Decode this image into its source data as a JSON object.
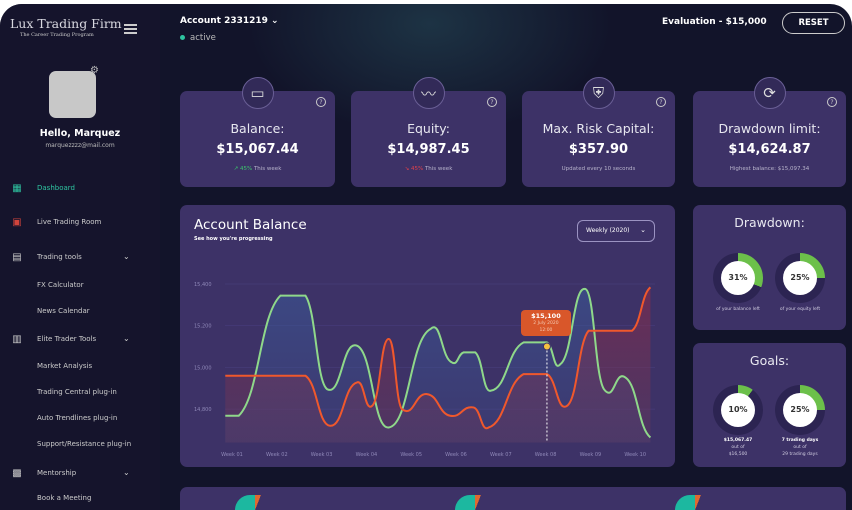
{
  "sidebar": {
    "logo_title": "Lux Trading Firm",
    "logo_subtitle": "The Career Trading Program",
    "greeting": "Hello, Marquez",
    "email": "marquezzzz@mail.com",
    "items": [
      {
        "label": "Dashboard",
        "icon": "dashboard-icon",
        "active": true
      },
      {
        "label": "Live Trading Room",
        "icon": "live-room-icon"
      },
      {
        "label": "Trading tools",
        "icon": "trading-tools-icon",
        "expandable": true
      },
      {
        "label": "Elite Trader Tools",
        "icon": "elite-tools-icon",
        "expandable": true
      },
      {
        "label": "Mentorship",
        "icon": "mentorship-icon",
        "expandable": true
      }
    ],
    "subitems": {
      "trading_tools": [
        "FX Calculator",
        "News Calendar"
      ],
      "elite": [
        "Market Analysis",
        "Trading Central plug-in",
        "Auto Trendlines plug-in",
        "Support/Resistance plug-in"
      ],
      "mentorship": [
        "Book a Meeting"
      ]
    }
  },
  "header": {
    "account": "Account 2331219",
    "status": "active",
    "evaluation": "Evaluation - $15,000",
    "reset_label": "RESET"
  },
  "stats": [
    {
      "title": "Balance:",
      "value": "$15,067.44",
      "pct": "45%",
      "note": "This week",
      "trend": "up",
      "icon": "wallet-icon"
    },
    {
      "title": "Equity:",
      "value": "$14,987.45",
      "pct": "45%",
      "note": "This week",
      "trend": "down",
      "icon": "pulse-icon"
    },
    {
      "title": "Max. Risk Capital:",
      "value": "$357.90",
      "note": "Updated every 10 seconds",
      "icon": "shield-icon"
    },
    {
      "title": "Drawdown limit:",
      "value": "$14,624.87",
      "note": "Highest balance: $15,097.34",
      "icon": "refresh-dollar-icon"
    }
  ],
  "colors": {
    "green": "#8fd88a",
    "orange": "#f0582c",
    "accent": "#2ec4a0",
    "ring": "#6cc04a"
  },
  "chart_data": {
    "type": "line",
    "title": "Account Balance",
    "subtitle": "See how you're progressing",
    "period": "Weekly (2020)",
    "categories": [
      "Week 01",
      "Week 02",
      "Week 03",
      "Week 04",
      "Week 05",
      "Week 06",
      "Week 07",
      "Week 08",
      "Week 09",
      "Week 10"
    ],
    "yticks": [
      "15,400",
      "15,200",
      "15,000",
      "14,800"
    ],
    "ytick_values": [
      15400,
      15200,
      15000,
      14800
    ],
    "ylim": [
      14640,
      15420
    ],
    "series": [
      {
        "name": "balance",
        "color": "#8fd88a",
        "x": [
          0.85,
          1.15,
          2.08,
          2.64,
          3.12,
          3.79,
          4.5,
          5.43,
          5.91,
          6.17,
          6.43,
          6.77,
          7.51,
          8.03,
          8.33,
          8.89,
          9.3,
          9.78,
          10.34
        ],
        "y": [
          14768,
          14768,
          15344,
          15344,
          14896,
          15104,
          14712,
          15184,
          15024,
          15072,
          15072,
          14888,
          15120,
          15120,
          15016,
          15376,
          14896,
          14952,
          14664
        ]
      },
      {
        "name": "equity",
        "color": "#f0582c",
        "x": [
          0.85,
          2.64,
          3.19,
          3.79,
          4.13,
          4.5,
          4.79,
          5.35,
          5.87,
          6.39,
          6.73,
          7.51,
          8.03,
          8.48,
          8.96,
          9.93,
          10.34
        ],
        "y": [
          14960,
          14960,
          14720,
          14928,
          14816,
          15136,
          14800,
          14872,
          14768,
          14808,
          14712,
          14968,
          14968,
          14816,
          15176,
          15176,
          15384
        ]
      }
    ],
    "tooltip": {
      "value": "$15,100",
      "date": "2 July 2020",
      "time": "12:00",
      "x": 8.03,
      "y": 15100
    }
  },
  "drawdown": {
    "title": "Drawdown:",
    "items": [
      {
        "pct": 31,
        "label": "31%",
        "caption": "of your balance left"
      },
      {
        "pct": 25,
        "label": "25%",
        "caption": "of your equity left"
      }
    ]
  },
  "goals": {
    "title": "Goals:",
    "items": [
      {
        "pct": 10,
        "label": "10%",
        "line1": "$15,067.47",
        "line2": "out of",
        "line3": "$16,500"
      },
      {
        "pct": 25,
        "label": "25%",
        "line1": "7 trading days",
        "line2": "out of",
        "line3": "29 trading days"
      }
    ]
  }
}
